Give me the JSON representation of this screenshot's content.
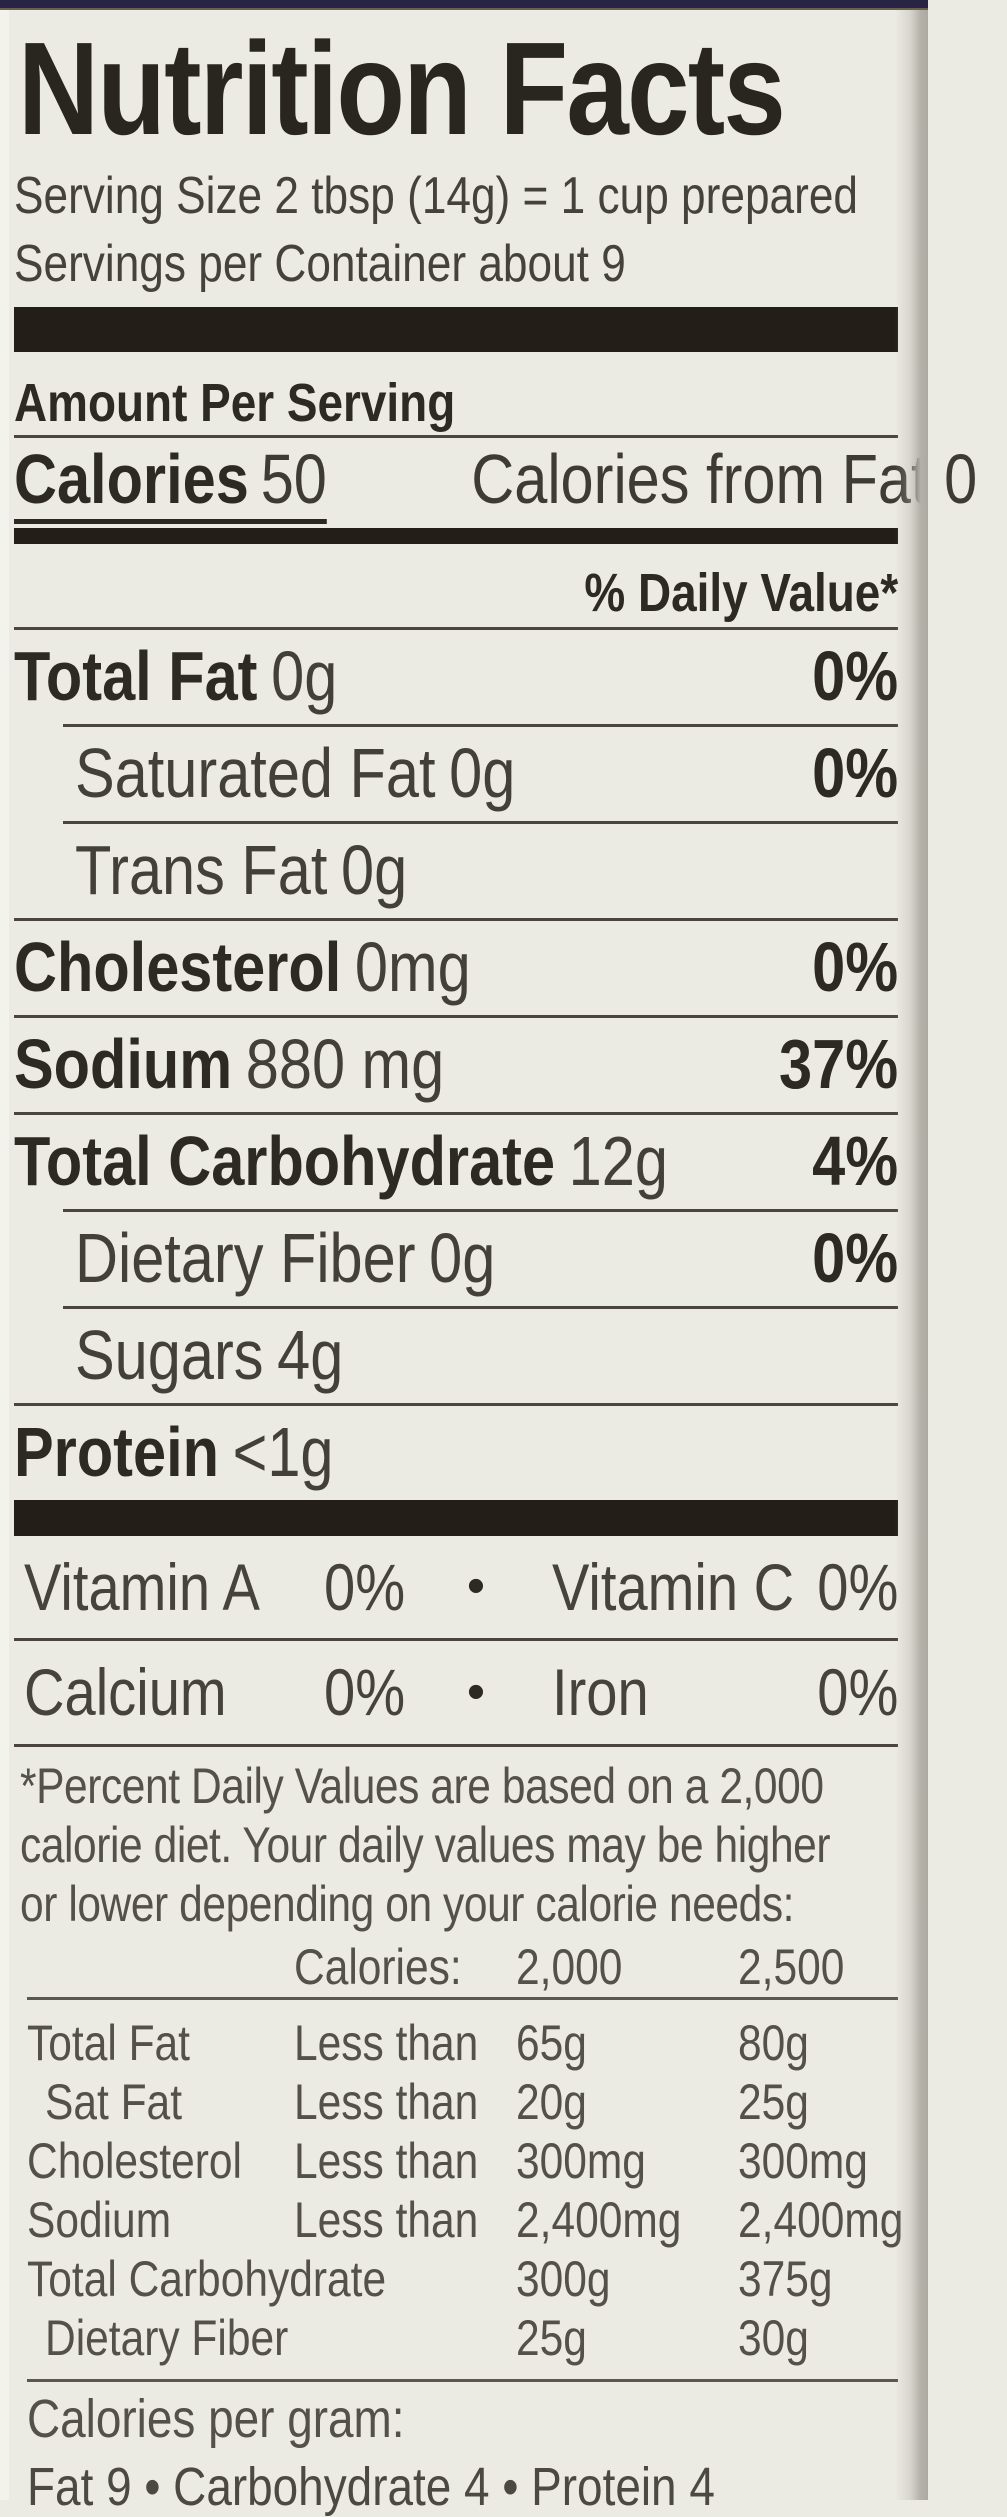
{
  "colors": {
    "background": "#ecebe3",
    "top_package_edge": "#282544",
    "thick_bar": "#231f18",
    "text_bold": "#2d2a24",
    "text_regular": "#45423c",
    "text_footnote": "#54514a",
    "right_edge": "#adaaa1"
  },
  "label": {
    "title": "Nutrition Facts",
    "serving_size": "Serving Size 2 tbsp (14g) = 1 cup prepared",
    "servings_per_container": "Servings per Container about 9",
    "amount_per_serving": "Amount Per Serving",
    "calories": {
      "label": "Calories",
      "value": "50",
      "from_fat": "Calories from Fat 0"
    },
    "daily_value_header": "% Daily Value*",
    "nutrients": [
      {
        "name": "Total Fat",
        "amount": "0g",
        "dv": "0%"
      },
      {
        "name": "Saturated Fat",
        "amount": "0g",
        "dv": "0%"
      },
      {
        "name": "Trans Fat",
        "amount": "0g",
        "dv": ""
      },
      {
        "name": "Cholesterol",
        "amount": "0mg",
        "dv": "0%"
      },
      {
        "name": "Sodium",
        "amount": "880 mg",
        "dv": "37%"
      },
      {
        "name": "Total Carbohydrate",
        "amount": "12g",
        "dv": "4%"
      },
      {
        "name": "Dietary Fiber",
        "amount": "0g",
        "dv": "0%"
      },
      {
        "name": "Sugars",
        "amount": "4g",
        "dv": ""
      },
      {
        "name": "Protein",
        "amount": "<1g",
        "dv": ""
      }
    ],
    "vitamins": {
      "bullet": "•",
      "rows": [
        {
          "left_name": "Vitamin A",
          "left_value": "0%",
          "right_name": "Vitamin C",
          "right_value": "0%"
        },
        {
          "left_name": "Calcium",
          "left_value": "0%",
          "right_name": "Iron",
          "right_value": "0%"
        }
      ]
    },
    "footnote_lines": [
      "*Percent Daily Values are based on a 2,000",
      "calorie diet. Your daily values may be higher",
      "or lower depending on your calorie needs:"
    ],
    "footnote_table": {
      "header_label": "Calories:",
      "header_col1": "2,000",
      "header_col2": "2,500",
      "rows": [
        {
          "name": "Total Fat",
          "qualifier": "Less than",
          "v1": "65g",
          "v2": "80g"
        },
        {
          "name": "Sat Fat",
          "qualifier": "Less than",
          "v1": "20g",
          "v2": "25g"
        },
        {
          "name": "Cholesterol",
          "qualifier": "Less than",
          "v1": "300mg",
          "v2": "300mg"
        },
        {
          "name": "Sodium",
          "qualifier": "Less than",
          "v1": "2,400mg",
          "v2": "2,400mg"
        },
        {
          "name": "Total Carbohydrate",
          "qualifier": "",
          "v1": "300g",
          "v2": "375g"
        },
        {
          "name": "Dietary Fiber",
          "qualifier": "",
          "v1": "25g",
          "v2": "30g"
        }
      ]
    },
    "calories_per_gram": {
      "title": "Calories per gram:",
      "line": "Fat 9 • Carbohydrate 4 • Protein 4"
    }
  }
}
